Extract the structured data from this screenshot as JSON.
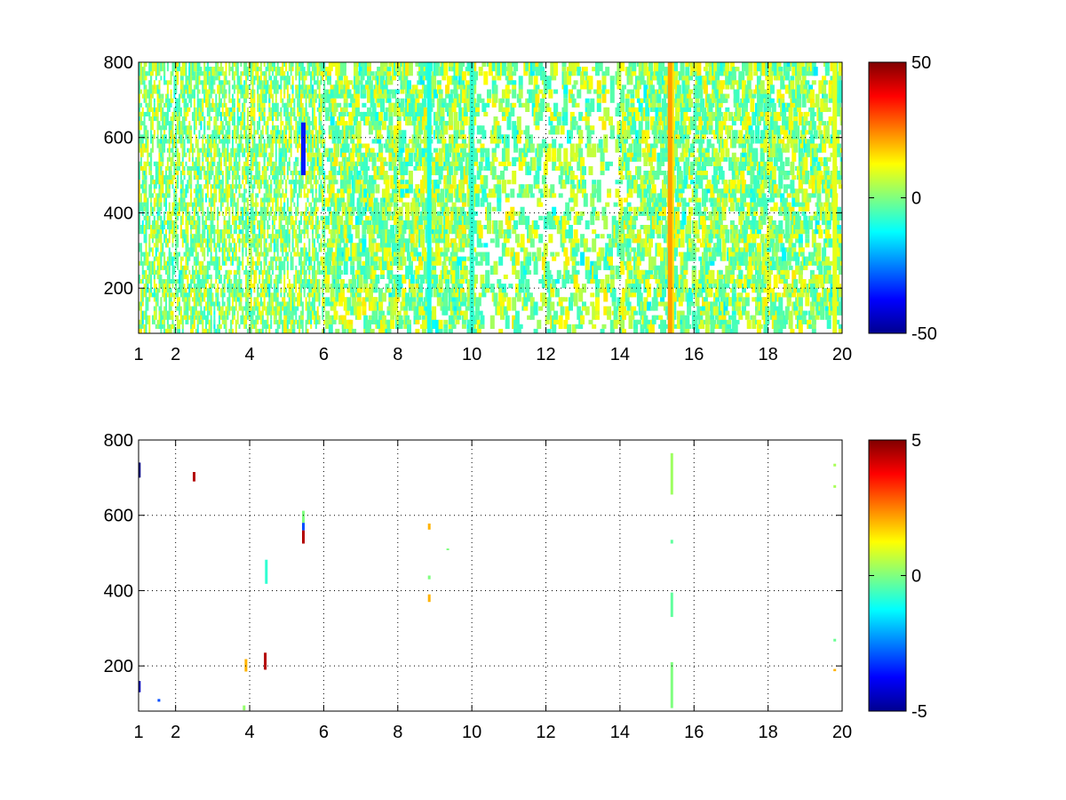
{
  "chart_data": [
    {
      "type": "heatmap",
      "title": "",
      "xlabel": "",
      "ylabel": "",
      "xlim": [
        1,
        20
      ],
      "ylim": [
        80,
        800
      ],
      "x_ticks": [
        1,
        2,
        4,
        6,
        8,
        10,
        12,
        14,
        16,
        18,
        20
      ],
      "y_ticks": [
        200,
        400,
        600,
        800
      ],
      "x_tick_labels": [
        "1",
        "2",
        "4",
        "6",
        "8",
        "10",
        "12",
        "14",
        "16",
        "18",
        "20"
      ],
      "y_tick_labels": [
        "200",
        "400",
        "600",
        "800"
      ],
      "grid": true,
      "grid_style": "dotted",
      "colormap": "jet",
      "color_range": [
        -50,
        50
      ],
      "colorbar_ticks": [
        -50,
        0,
        50
      ],
      "colorbar_tick_labels": [
        "-50",
        "0",
        "50"
      ],
      "colorbar_position": "right",
      "pattern": "dense",
      "columns": [
        {
          "x": 15.4,
          "ymin": 80,
          "ymax": 800,
          "value": 15
        },
        {
          "x": 15.35,
          "ymin": 80,
          "ymax": 800,
          "value": 22
        },
        {
          "x": 19.8,
          "ymin": 80,
          "ymax": 800,
          "value": 10
        },
        {
          "x": 8.85,
          "ymin": 80,
          "ymax": 800,
          "value": -10
        },
        {
          "x": 10.0,
          "ymin": 80,
          "ymax": 800,
          "value": -8
        },
        {
          "x": 5.45,
          "ymin": 500,
          "ymax": 640,
          "value": -35
        }
      ]
    },
    {
      "type": "heatmap",
      "title": "",
      "xlabel": "",
      "ylabel": "",
      "xlim": [
        1,
        20
      ],
      "ylim": [
        80,
        800
      ],
      "x_ticks": [
        1,
        2,
        4,
        6,
        8,
        10,
        12,
        14,
        16,
        18,
        20
      ],
      "y_ticks": [
        200,
        400,
        600,
        800
      ],
      "x_tick_labels": [
        "1",
        "2",
        "4",
        "6",
        "8",
        "10",
        "12",
        "14",
        "16",
        "18",
        "20"
      ],
      "y_tick_labels": [
        "200",
        "400",
        "600",
        "800"
      ],
      "grid": true,
      "grid_style": "dotted",
      "colormap": "jet",
      "color_range": [
        -5,
        5
      ],
      "colorbar_ticks": [
        -5,
        0,
        5
      ],
      "colorbar_tick_labels": [
        "-5",
        "0",
        "5"
      ],
      "colorbar_position": "right",
      "pattern": "sparse",
      "segments": [
        {
          "x": 1.02,
          "ymin": 700,
          "ymax": 740,
          "value": -5
        },
        {
          "x": 1.02,
          "ymin": 130,
          "ymax": 160,
          "value": -4.5
        },
        {
          "x": 1.55,
          "ymin": 105,
          "ymax": 112,
          "value": -3
        },
        {
          "x": 2.5,
          "ymin": 690,
          "ymax": 715,
          "value": 4.5
        },
        {
          "x": 3.9,
          "ymin": 185,
          "ymax": 218,
          "value": 2
        },
        {
          "x": 3.85,
          "ymin": 82,
          "ymax": 95,
          "value": 0.2
        },
        {
          "x": 4.42,
          "ymin": 190,
          "ymax": 235,
          "value": 4.5
        },
        {
          "x": 4.45,
          "ymin": 418,
          "ymax": 482,
          "value": -0.8
        },
        {
          "x": 5.45,
          "ymin": 580,
          "ymax": 612,
          "value": 0
        },
        {
          "x": 5.45,
          "ymin": 560,
          "ymax": 580,
          "value": -3
        },
        {
          "x": 5.45,
          "ymin": 525,
          "ymax": 560,
          "value": 4.5
        },
        {
          "x": 8.85,
          "ymin": 562,
          "ymax": 578,
          "value": 2
        },
        {
          "x": 8.85,
          "ymin": 370,
          "ymax": 390,
          "value": 2
        },
        {
          "x": 8.85,
          "ymin": 430,
          "ymax": 440,
          "value": 0
        },
        {
          "x": 9.35,
          "ymin": 508,
          "ymax": 512,
          "value": 0
        },
        {
          "x": 15.4,
          "ymin": 88,
          "ymax": 210,
          "value": 0
        },
        {
          "x": 15.4,
          "ymin": 330,
          "ymax": 395,
          "value": -0.3
        },
        {
          "x": 15.4,
          "ymin": 525,
          "ymax": 535,
          "value": -0.3
        },
        {
          "x": 15.4,
          "ymin": 655,
          "ymax": 765,
          "value": 0.3
        },
        {
          "x": 19.8,
          "ymin": 730,
          "ymax": 737,
          "value": 0.4
        },
        {
          "x": 19.8,
          "ymin": 673,
          "ymax": 680,
          "value": 0.4
        },
        {
          "x": 19.8,
          "ymin": 265,
          "ymax": 272,
          "value": -0.2
        },
        {
          "x": 19.8,
          "ymin": 186,
          "ymax": 192,
          "value": 2
        }
      ]
    }
  ]
}
